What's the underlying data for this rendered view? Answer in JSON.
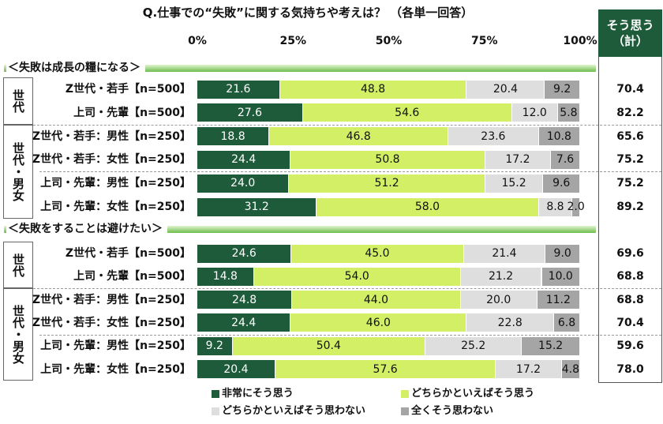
{
  "chart_data": {
    "type": "bar",
    "orientation": "horizontal",
    "stacked": true,
    "title": "Q.仕事での“失敗”に関する気持ちや考えは？ （各単一回答）",
    "xlim": [
      0,
      100
    ],
    "x_ticks": [
      "0%",
      "25%",
      "50%",
      "75%",
      "100%"
    ],
    "grid": false,
    "legend_position": "bottom",
    "total_header": [
      "そう思う",
      "（計）"
    ],
    "series": [
      {
        "name": "非常にそう思う",
        "color": "#1e5b3a"
      },
      {
        "name": "どちらかといえばそう思う",
        "color": "#d3ef66"
      },
      {
        "name": "どちらかといえばそう思わない",
        "color": "#dedede"
      },
      {
        "name": "全くそう思わない",
        "color": "#a5a5a5"
      }
    ],
    "panels": [
      {
        "label": "＜失敗は成長の糧になる＞",
        "groups": [
          {
            "label": "世代",
            "rows": [
              {
                "category": "Z世代・若手【n=500】",
                "values": [
                  21.6,
                  48.8,
                  20.4,
                  9.2
                ],
                "total": 70.4
              },
              {
                "category": "上司・先輩【n=500】",
                "values": [
                  27.6,
                  54.6,
                  12.0,
                  5.8
                ],
                "total": 82.2
              }
            ]
          },
          {
            "label": "世代・男女",
            "rows": [
              {
                "category": "Z世代・若手：男性【n=250】",
                "values": [
                  18.8,
                  46.8,
                  23.6,
                  10.8
                ],
                "total": 65.6
              },
              {
                "category": "Z世代・若手：女性【n=250】",
                "values": [
                  24.4,
                  50.8,
                  17.2,
                  7.6
                ],
                "total": 75.2
              },
              {
                "category": "上司・先輩：男性【n=250】",
                "values": [
                  24.0,
                  51.2,
                  15.2,
                  9.6
                ],
                "total": 75.2
              },
              {
                "category": "上司・先輩：女性【n=250】",
                "values": [
                  31.2,
                  58.0,
                  8.8,
                  2.0
                ],
                "total": 89.2
              }
            ]
          }
        ]
      },
      {
        "label": "＜失敗をすることは避けたい＞",
        "groups": [
          {
            "label": "世代",
            "rows": [
              {
                "category": "Z世代・若手【n=500】",
                "values": [
                  24.6,
                  45.0,
                  21.4,
                  9.0
                ],
                "total": 69.6
              },
              {
                "category": "上司・先輩【n=500】",
                "values": [
                  14.8,
                  54.0,
                  21.2,
                  10.0
                ],
                "total": 68.8
              }
            ]
          },
          {
            "label": "世代・男女",
            "rows": [
              {
                "category": "Z世代・若手：男性【n=250】",
                "values": [
                  24.8,
                  44.0,
                  20.0,
                  11.2
                ],
                "total": 68.8
              },
              {
                "category": "Z世代・若手：女性【n=250】",
                "values": [
                  24.4,
                  46.0,
                  22.8,
                  6.8
                ],
                "total": 70.4
              },
              {
                "category": "上司・先輩：男性【n=250】",
                "values": [
                  9.2,
                  50.4,
                  25.2,
                  15.2
                ],
                "total": 59.6
              },
              {
                "category": "上司・先輩：女性【n=250】",
                "values": [
                  20.4,
                  57.6,
                  17.2,
                  4.8
                ],
                "total": 78.0
              }
            ]
          }
        ]
      }
    ]
  }
}
